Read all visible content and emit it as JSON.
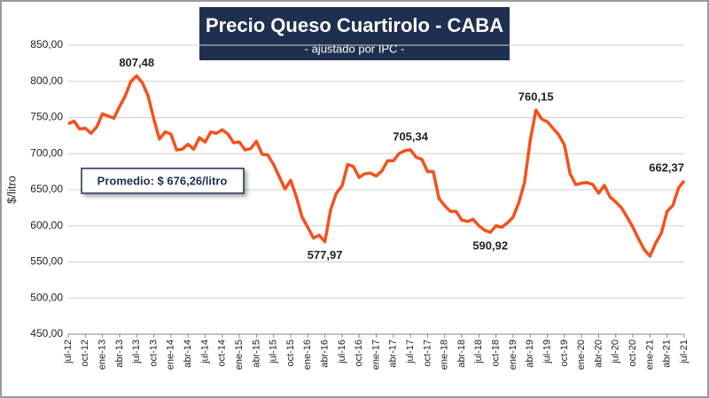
{
  "chart_data": {
    "type": "line",
    "title": "Precio Queso Cuartirolo - CABA",
    "subtitle": "- ajustado por IPC -",
    "y_label": "$/litro",
    "annotation": "Promedio: $ 676,26/litro",
    "categories": [
      "jul-12",
      null,
      null,
      "oct-12",
      null,
      null,
      "ene-13",
      null,
      null,
      "abr-13",
      null,
      null,
      "jul-13",
      null,
      null,
      "oct-13",
      null,
      null,
      "ene-14",
      null,
      null,
      "abr-14",
      null,
      null,
      "jul-14",
      null,
      null,
      "oct-14",
      null,
      null,
      "ene-15",
      null,
      null,
      "abr-15",
      null,
      null,
      "jul-15",
      null,
      null,
      "oct-15",
      null,
      null,
      "ene-16",
      null,
      null,
      "abr-16",
      null,
      null,
      "jul-16",
      null,
      null,
      "oct-16",
      null,
      null,
      "ene-17",
      null,
      null,
      "abr-17",
      null,
      null,
      "jul-17",
      null,
      null,
      "oct-17",
      null,
      null,
      "ene-18",
      null,
      null,
      "abr-18",
      null,
      null,
      "jul-18",
      null,
      null,
      "oct-18",
      null,
      null,
      "ene-19",
      null,
      null,
      "abr-19",
      null,
      null,
      "jul-19",
      null,
      null,
      "oct-19",
      null,
      null,
      "ene-20",
      null,
      null,
      "abr-20",
      null,
      null,
      "jul-20",
      null,
      null,
      "oct-20",
      null,
      null,
      "ene-21",
      null,
      null,
      "abr-21",
      null,
      null,
      "jul-21"
    ],
    "series": [
      {
        "name": "Precio",
        "color": "#f4511e",
        "values": [
          741,
          745,
          734,
          735,
          728,
          737,
          755,
          752,
          749,
          765,
          780,
          800,
          807.48,
          798,
          780,
          748,
          720,
          730,
          727,
          705,
          706,
          713,
          706,
          722,
          716,
          730,
          728,
          733,
          727,
          715,
          716,
          705,
          707,
          717,
          699,
          698,
          685,
          668,
          651,
          663,
          640,
          612,
          598,
          583,
          587,
          577.97,
          622,
          645,
          655,
          685,
          682,
          667,
          672,
          673,
          669,
          676,
          690,
          690,
          700,
          704,
          705.34,
          695,
          692,
          675,
          675,
          638,
          628,
          620,
          620,
          608,
          606,
          609,
          600,
          594,
          590.92,
          600,
          598,
          604,
          612,
          632,
          660,
          718,
          760.15,
          748,
          744,
          735,
          726,
          712,
          672,
          657,
          659,
          660,
          657,
          645,
          656,
          640,
          633,
          625,
          612,
          598,
          582,
          567,
          558,
          576,
          590,
          620,
          628,
          652,
          662.37
        ],
        "value_labels": [
          null,
          null,
          null,
          null,
          null,
          null,
          null,
          null,
          null,
          null,
          null,
          null,
          "807,48",
          null,
          null,
          null,
          null,
          null,
          null,
          null,
          null,
          null,
          null,
          null,
          null,
          null,
          null,
          null,
          null,
          null,
          null,
          null,
          null,
          null,
          null,
          null,
          null,
          null,
          null,
          null,
          null,
          null,
          null,
          null,
          null,
          "577,97",
          null,
          null,
          null,
          null,
          null,
          null,
          null,
          null,
          null,
          null,
          null,
          null,
          null,
          null,
          "705,34",
          null,
          null,
          null,
          null,
          null,
          null,
          null,
          null,
          null,
          null,
          null,
          null,
          null,
          "590,92",
          null,
          null,
          null,
          null,
          null,
          null,
          null,
          "760,15",
          null,
          null,
          null,
          null,
          null,
          null,
          null,
          null,
          null,
          null,
          null,
          null,
          null,
          null,
          null,
          null,
          null,
          null,
          null,
          null,
          null,
          null,
          null,
          null,
          null,
          "662,37"
        ]
      }
    ],
    "ylim": [
      450,
      850
    ],
    "yticks": [
      {
        "value": 450,
        "label": "450,00"
      },
      {
        "value": 500,
        "label": "500,00"
      },
      {
        "value": 550,
        "label": "550,00"
      },
      {
        "value": 600,
        "label": "600,00"
      },
      {
        "value": 650,
        "label": "650,00"
      },
      {
        "value": 700,
        "label": "700,00"
      },
      {
        "value": 750,
        "label": "750,00"
      },
      {
        "value": 800,
        "label": "800,00"
      },
      {
        "value": 850,
        "label": "850,00"
      }
    ],
    "grid": true
  }
}
